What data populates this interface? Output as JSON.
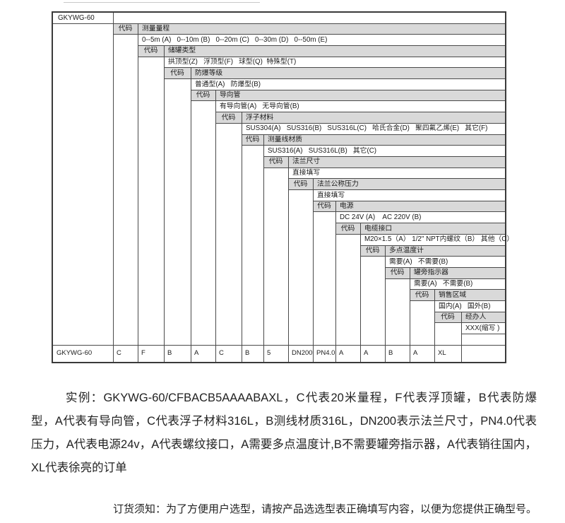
{
  "page": {
    "model": "GKYWG-60",
    "code_label": "代码",
    "levels": [
      {
        "name": "测量量程",
        "options": "0--5m (A)   0--10m (B)   0--20m (C)   0--30m (D)   0--50m (E)"
      },
      {
        "name": "储罐类型",
        "options": "拱顶型(Z)   浮顶型(F)   球型(Q)  特殊型(T)"
      },
      {
        "name": "防爆等级",
        "options": "普通型(A)   防爆型(B)"
      },
      {
        "name": "导向管",
        "options": "有导向管(A)   无导向管(B)"
      },
      {
        "name": "浮子材料",
        "options": "SUS304(A)   SUS316(B)   SUS316L(C)   哈氏合金(D)   聚四氟乙烯(E)   其它(F)"
      },
      {
        "name": "测量线材质",
        "options": "SUS316(A)   SUS316L(B)   其它(C)"
      },
      {
        "name": "法兰尺寸",
        "options": "直接填写"
      },
      {
        "name": "法兰公称压力",
        "options": "直接填写"
      },
      {
        "name": "电源",
        "options": "DC 24V (A)    AC 220V (B)"
      },
      {
        "name": "电缆接口",
        "options": "M20×1.5（A） 1/2\" NPT内螺纹（B） 其他（C）"
      },
      {
        "name": "多点温度计",
        "options": "需要(A)   不需要(B)"
      },
      {
        "name": "罐旁指示器",
        "options": "需要(A)   不需要(B)"
      },
      {
        "name": "销售区域",
        "options": "国内(A)   国外(B)"
      },
      {
        "name": "经办人",
        "options": "XXX(缩写 )"
      }
    ],
    "result_row": [
      "GKYWG-60",
      "C",
      "F",
      "B",
      "A",
      "C",
      "B",
      "5",
      "DN200",
      "PN4.0",
      "A",
      "A",
      "B",
      "A",
      "XL",
      ""
    ],
    "example_text": "实例：GKYWG-60/CFBACB5AAAABAXL，C代表20米量程，F代表浮顶罐，B代表防爆型，A代表有导向管，C代表浮子材料316L，B测线材质316L，DN200表示法兰尺寸，PN4.0代表压力，A代表电源24v，A代表螺纹接口，A需要多点温度计,B不需要罐旁指示器，A代表销往国内，XL代表徐亮的订单",
    "order_note": "订货须知：为了方便用户选型，请按产品选选型表正确填写内容，以便为您提供正确型号。",
    "colors": {
      "header_fill": "#d9d9d9",
      "grid": "#4a4a4a",
      "text": "#1b1b1b"
    }
  }
}
